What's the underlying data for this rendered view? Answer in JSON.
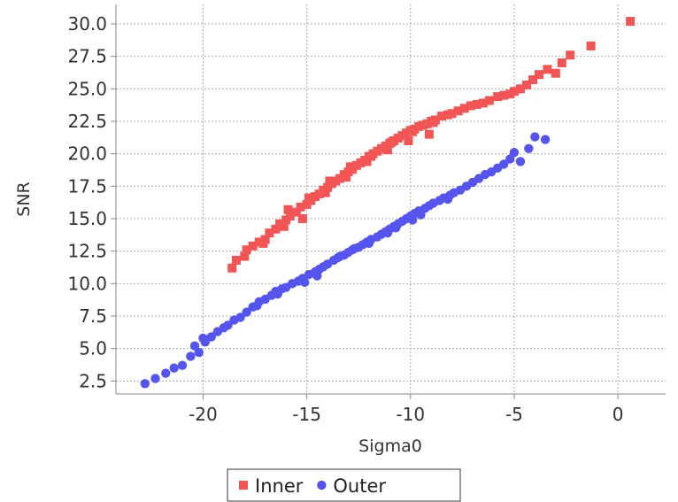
{
  "chart_data": {
    "type": "scatter",
    "title": "",
    "xlabel": "Sigma0",
    "ylabel": "SNR",
    "xlim": [
      -24.2,
      2.3
    ],
    "ylim": [
      1.5,
      31.5
    ],
    "x_ticks": [
      -20,
      -15,
      -10,
      -5,
      0
    ],
    "x_tick_labels": [
      "-20",
      "-15",
      "-10",
      "-5",
      "0"
    ],
    "y_ticks": [
      2.5,
      5.0,
      7.5,
      10.0,
      12.5,
      15.0,
      17.5,
      20.0,
      22.5,
      25.0,
      27.5,
      30.0
    ],
    "y_tick_labels": [
      "2.5",
      "5.0",
      "7.5",
      "10.0",
      "12.5",
      "15.0",
      "17.5",
      "20.0",
      "22.5",
      "25.0",
      "27.5",
      "30.0"
    ],
    "grid": true,
    "legend_position": "bottom",
    "series": [
      {
        "name": "Inner",
        "marker": "square",
        "color": "#f25555",
        "x": [
          -18.6,
          -18.4,
          -18.0,
          -17.9,
          -17.6,
          -17.3,
          -17.0,
          -16.8,
          -16.5,
          -16.3,
          -16.0,
          -15.8,
          -15.5,
          -15.3,
          -15.0,
          -14.8,
          -14.6,
          -14.4,
          -14.2,
          -14.0,
          -13.8,
          -13.6,
          -13.4,
          -13.2,
          -13.0,
          -12.8,
          -12.6,
          -12.4,
          -12.2,
          -12.0,
          -11.8,
          -11.6,
          -11.4,
          -11.2,
          -11.0,
          -10.8,
          -10.6,
          -10.4,
          -10.2,
          -10.0,
          -9.8,
          -9.6,
          -9.4,
          -9.2,
          -9.0,
          -8.8,
          -8.5,
          -8.2,
          -8.0,
          -7.7,
          -7.4,
          -7.1,
          -6.8,
          -6.5,
          -6.2,
          -5.8,
          -5.5,
          -5.2,
          -5.0,
          -4.7,
          -4.4,
          -4.1,
          -3.8,
          -3.4,
          -3.0,
          -2.7,
          -2.3,
          -1.3,
          0.6,
          -15.2,
          -14.1,
          -13.1,
          -12.1,
          -11.1,
          -10.1,
          -9.1,
          -16.1,
          -17.1,
          -13.9,
          -12.9,
          -11.9,
          -10.9,
          -9.9,
          -8.9,
          -14.9,
          -15.9
        ],
        "y": [
          11.2,
          11.8,
          12.1,
          12.6,
          12.9,
          13.2,
          13.4,
          13.9,
          14.2,
          14.6,
          14.9,
          15.2,
          15.5,
          15.9,
          16.1,
          16.4,
          16.7,
          16.9,
          17.2,
          17.4,
          17.7,
          17.9,
          18.1,
          18.4,
          18.6,
          18.8,
          19.1,
          19.3,
          19.5,
          19.8,
          20.0,
          20.2,
          20.4,
          20.6,
          20.8,
          21.0,
          21.2,
          21.4,
          21.6,
          21.8,
          21.9,
          22.1,
          22.2,
          22.3,
          22.5,
          22.6,
          22.9,
          23.0,
          23.1,
          23.3,
          23.5,
          23.7,
          23.8,
          23.9,
          24.1,
          24.4,
          24.5,
          24.6,
          24.8,
          25.0,
          25.3,
          25.7,
          26.1,
          26.5,
          26.2,
          27.0,
          27.6,
          28.3,
          30.2,
          15.0,
          17.0,
          18.2,
          19.4,
          20.3,
          21.0,
          21.5,
          14.4,
          13.1,
          17.9,
          19.0,
          19.8,
          20.9,
          21.7,
          22.4,
          16.6,
          15.7
        ]
      },
      {
        "name": "Outer",
        "marker": "circle",
        "color": "#5555ee",
        "x": [
          -22.8,
          -22.3,
          -21.8,
          -21.4,
          -21.0,
          -20.6,
          -20.4,
          -20.2,
          -19.9,
          -19.6,
          -19.3,
          -19.0,
          -18.8,
          -18.5,
          -18.2,
          -17.9,
          -17.6,
          -17.3,
          -17.0,
          -16.7,
          -16.5,
          -16.2,
          -16.0,
          -15.7,
          -15.4,
          -15.2,
          -14.9,
          -14.6,
          -14.4,
          -14.2,
          -14.0,
          -13.7,
          -13.5,
          -13.2,
          -13.0,
          -12.8,
          -12.5,
          -12.3,
          -12.1,
          -11.9,
          -11.6,
          -11.4,
          -11.2,
          -11.0,
          -10.8,
          -10.6,
          -10.4,
          -10.2,
          -10.0,
          -9.8,
          -9.6,
          -9.3,
          -9.1,
          -8.9,
          -8.6,
          -8.4,
          -8.1,
          -7.9,
          -7.6,
          -7.3,
          -7.0,
          -6.7,
          -6.4,
          -6.1,
          -5.8,
          -5.5,
          -5.2,
          -5.0,
          -4.7,
          -4.3,
          -4.0,
          -3.5,
          -20.0,
          -17.4,
          -15.1,
          -13.4,
          -12.0,
          -10.7,
          -9.5,
          -8.2,
          -16.4,
          -14.5,
          -12.7,
          -11.1,
          -9.9
        ],
        "y": [
          2.3,
          2.7,
          3.1,
          3.5,
          3.7,
          4.4,
          5.2,
          4.7,
          5.5,
          5.9,
          6.3,
          6.6,
          6.8,
          7.2,
          7.4,
          7.8,
          8.2,
          8.6,
          8.8,
          9.1,
          9.4,
          9.6,
          9.7,
          10.0,
          10.2,
          10.4,
          10.7,
          10.9,
          11.1,
          11.3,
          11.5,
          11.8,
          12.0,
          12.2,
          12.4,
          12.6,
          12.8,
          13.0,
          13.2,
          13.4,
          13.6,
          13.8,
          14.0,
          14.2,
          14.4,
          14.6,
          14.8,
          15.0,
          15.2,
          15.4,
          15.6,
          15.8,
          16.0,
          16.2,
          16.4,
          16.6,
          16.8,
          17.0,
          17.2,
          17.5,
          17.8,
          18.1,
          18.4,
          18.6,
          18.9,
          19.2,
          19.6,
          20.1,
          19.4,
          20.4,
          21.3,
          21.1,
          5.8,
          8.3,
          10.1,
          12.1,
          13.1,
          14.3,
          15.3,
          16.5,
          9.2,
          10.6,
          12.7,
          13.9,
          14.9
        ]
      }
    ]
  }
}
